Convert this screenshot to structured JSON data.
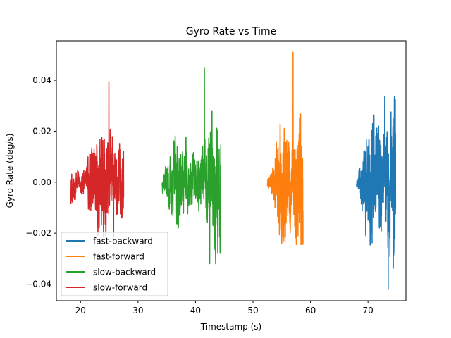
{
  "chart_data": {
    "type": "line",
    "title": "Gyro Rate vs Time",
    "xlabel": "Timestamp (s)",
    "ylabel": "Gyro Rate (deg/s)",
    "xlim": [
      15.8,
      76.6
    ],
    "ylim": [
      -0.0465,
      0.0555
    ],
    "xticks": [
      20,
      30,
      40,
      50,
      60,
      70
    ],
    "yticks": [
      -0.04,
      -0.02,
      0.0,
      0.02,
      0.04
    ],
    "ytick_labels": [
      "−0.04",
      "−0.02",
      "0.00",
      "0.02",
      "0.04"
    ],
    "grid": false,
    "legend_position": "lower-left",
    "series": [
      {
        "name": "fast-backward",
        "color": "#1f77b4",
        "t_start": 68.0,
        "t_end": 74.8,
        "amplitude": 0.022,
        "peak_max": 0.0335,
        "peak_min": -0.042,
        "seed": 11
      },
      {
        "name": "fast-forward",
        "color": "#ff7f0e",
        "t_start": 52.5,
        "t_end": 58.7,
        "amplitude": 0.02,
        "peak_max": 0.051,
        "peak_min": -0.0245,
        "seed": 23
      },
      {
        "name": "slow-backward",
        "color": "#2ca02c",
        "t_start": 34.2,
        "t_end": 44.4,
        "amplitude": 0.016,
        "peak_max": 0.045,
        "peak_min": -0.032,
        "seed": 37
      },
      {
        "name": "slow-forward",
        "color": "#d62728",
        "t_start": 18.3,
        "t_end": 27.5,
        "amplitude": 0.016,
        "peak_max": 0.0395,
        "peak_min": -0.0215,
        "seed": 53
      }
    ]
  }
}
